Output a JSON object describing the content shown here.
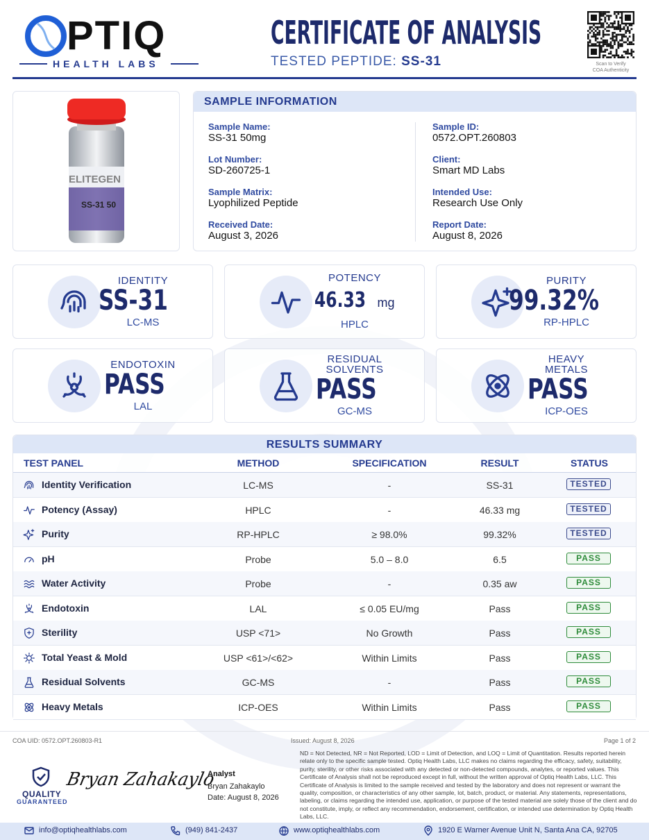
{
  "header": {
    "logo": "OPTIQ",
    "tagline": "HEALTH LABS",
    "title": "CERTIFICATE OF ANALYSIS",
    "subtitle_label": "TESTED PEPTIDE:",
    "subtitle_value": "SS-31",
    "qr_caption": [
      "Scan to Verify",
      "COA Authenticity"
    ]
  },
  "product_image": {
    "brand": "ELITEGEN",
    "label": "SS-31 50"
  },
  "sample_information": {
    "title": "SAMPLE INFORMATION",
    "fields": [
      {
        "label": "Sample Name:",
        "value": "SS-31 50mg"
      },
      {
        "label": "Lot Number:",
        "value": "SD-260725-1"
      },
      {
        "label": "Sample Matrix:",
        "value": "Lyophilized Peptide"
      },
      {
        "label": "Received Date:",
        "value": "August 3, 2026"
      },
      {
        "label": "Sample ID:",
        "value": "0572.OPT.260803"
      },
      {
        "label": "Client:",
        "value": "Smart MD Labs"
      },
      {
        "label": "Intended Use:",
        "value": "Research Use Only"
      },
      {
        "label": "Report Date:",
        "value": "August 8, 2026"
      }
    ]
  },
  "summary_cards": [
    {
      "title": "IDENTITY",
      "value": "SS-31",
      "method": "LC-MS"
    },
    {
      "title": "POTENCY",
      "value": "46.33",
      "unit": "mg",
      "method": "HPLC"
    },
    {
      "title": "PURITY",
      "value": "99.32%",
      "method": "RP-HPLC"
    },
    {
      "title": "ENDOTOXIN",
      "value": "PASS",
      "method": "LAL"
    },
    {
      "title": "RESIDUAL SOLVENTS",
      "value": "PASS",
      "method": "GC-MS"
    },
    {
      "title": "HEAVY METALS",
      "value": "PASS",
      "method": "ICP-OES"
    }
  ],
  "results_summary": {
    "title": "RESULTS SUMMARY",
    "columns": [
      "TEST PANEL",
      "METHOD",
      "SPECIFICATION",
      "RESULT",
      "STATUS"
    ],
    "rows": [
      [
        "Identity Verification",
        "LC-MS",
        "-",
        "SS-31",
        "TESTED"
      ],
      [
        "Potency (Assay)",
        "HPLC",
        "-",
        "46.33 mg",
        "TESTED"
      ],
      [
        "Purity",
        "RP-HPLC",
        "≥ 98.0%",
        "99.32%",
        "TESTED"
      ],
      [
        "pH",
        "Probe",
        "5.0 – 8.0",
        "6.5",
        "PASS"
      ],
      [
        "Water Activity",
        "Probe",
        "-",
        "0.35 aw",
        "PASS"
      ],
      [
        "Endotoxin",
        "LAL",
        "≤ 0.05 EU/mg",
        "Pass",
        "PASS"
      ],
      [
        "Sterility",
        "USP <71>",
        "No Growth",
        "Pass",
        "PASS"
      ],
      [
        "Total Yeast & Mold",
        "USP <61>/<62>",
        "Within Limits",
        "Pass",
        "PASS"
      ],
      [
        "Residual Solvents",
        "GC-MS",
        "-",
        "Pass",
        "PASS"
      ],
      [
        "Heavy Metals",
        "ICP-OES",
        "Within Limits",
        "Pass",
        "PASS"
      ]
    ],
    "status_colors": [
      "#3a4a8c",
      "#3a4a8c",
      "#3a4a8c",
      "#2e8b3a",
      "#2e8b3a",
      "#2e8b3a",
      "#2e8b3a",
      "#2e8b3a",
      "#2e8b3a",
      "#2e8b3a"
    ]
  },
  "footer": {
    "uid": "COA UID: 0572.OPT.260803-R1",
    "issued": "Issued: August 8, 2026",
    "page": "Page 1 of 2",
    "quality": [
      "QUALITY",
      "GUARANTEED"
    ],
    "analyst": {
      "role": "Analyst",
      "name": "Bryan Zahakaylo",
      "date": "Date: August 8, 2026"
    },
    "disclaimer": "ND = Not Detected, NR = Not Reported, LOD = Limit of Detection, and LOQ = Limit of Quantitation. Results reported herein relate only to the specific sample tested. Optiq Health Labs, LLC makes no claims regarding the efficacy, safety, suitability, purity, sterility, or other risks associated with any detected or non-detected compounds, analytes, or reported values. This Certificate of Analysis shall not be reproduced except in full, without the written approval of Optiq Health Labs, LLC. This Certificate of Analysis is limited to the sample received and tested by the laboratory and does not represent or warrant the quality, composition, or characteristics of any other sample, lot, batch, product, or material. Any statements, representations, labeling, or claims regarding the intended use, application, or purpose of the tested material are solely those of the client and do not constitute, imply, or reflect any recommendation, endorsement, certification, or intended use determination by Optiq Health Labs, LLC.",
    "contacts": [
      "info@optiqhealthlabs.com",
      "(949) 841-2437",
      "www.optiqhealthlabs.com",
      "1920 E Warner Avenue Unit N, Santa Ana CA, 92705"
    ]
  }
}
